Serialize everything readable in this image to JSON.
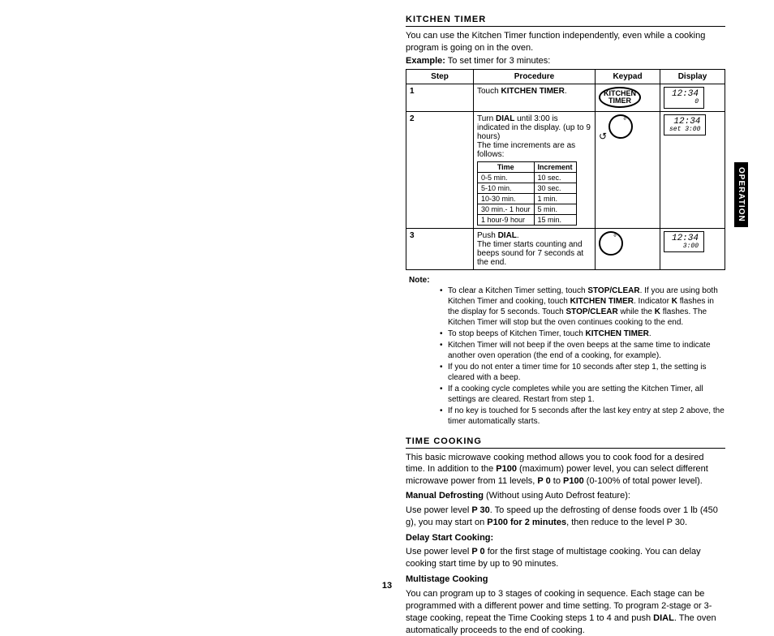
{
  "header": {
    "title": "KITCHEN TIMER"
  },
  "intro": {
    "p1": "You can use the Kitchen Timer function independently, even while a cooking program is going on in the oven.",
    "example_lbl": "Example:",
    "example_txt": " To set timer for 3 minutes:"
  },
  "table": {
    "cols": {
      "step": "Step",
      "procedure": "Procedure",
      "keypad": "Keypad",
      "display": "Display"
    },
    "rows": [
      {
        "num": "1",
        "proc_pre": "Touch ",
        "proc_bold": "KITCHEN TIMER",
        "proc_post": ".",
        "keypad_oval_l1": "KITCHEN",
        "keypad_oval_l2": "TIMER",
        "lcd_main": "12:34",
        "lcd_sub": "0"
      },
      {
        "num": "2",
        "proc_pre": "Turn ",
        "proc_bold": "DIAL",
        "proc_post": " until 3:00 is indicated in the display. (up to 9 hours)",
        "proc_p2": "The time increments are as follows:",
        "inner": {
          "h1": "Time",
          "h2": "Increment",
          "r": [
            [
              "0-5 min.",
              "10 sec."
            ],
            [
              "5-10 min.",
              "30 sec."
            ],
            [
              "10-30 min.",
              "1 min."
            ],
            [
              "30 min.- 1 hour",
              "5 min."
            ],
            [
              "1 hour-9 hour",
              "15 min."
            ]
          ]
        },
        "arrow": "↺",
        "lcd_main": "12:34",
        "lcd_sub": "set  3:00"
      },
      {
        "num": "3",
        "proc_pre": "Push ",
        "proc_bold": "DIAL",
        "proc_post": ".",
        "proc_p2": "The timer starts counting and beeps sound for 7 seconds at the end.",
        "lcd_main": "12:34",
        "lcd_sub": "3:00"
      }
    ]
  },
  "note": {
    "lbl": "Note:",
    "items": [
      {
        "pre": "To clear a Kitchen Timer setting, touch ",
        "b1": "STOP/CLEAR",
        "mid": ". If you are using both Kitchen Timer and cooking, touch ",
        "b2": "KITCHEN TIMER",
        "mid2": ". Indicator ",
        "b3": "K",
        "mid3": " flashes in the display for 5 seconds. Touch ",
        "b4": "STOP/CLEAR",
        "mid4": " while the ",
        "b5": "K",
        "post": " flashes. The Kitchen Timer will stop but the oven continues cooking to the end."
      },
      {
        "pre": "To stop beeps of Kitchen Timer, touch ",
        "b1": "KITCHEN TIMER",
        "post": "."
      },
      {
        "pre": "Kitchen Timer will not beep if the oven beeps at the same time to indicate another oven operation (the end of a cooking, for example).",
        "b1": "",
        "post": ""
      },
      {
        "pre": "If you do not enter a timer time for 10 seconds after step 1, the setting is cleared with a beep.",
        "b1": "",
        "post": ""
      },
      {
        "pre": "If a cooking cycle completes while you are setting the Kitchen Timer, all settings are cleared. Restart from step 1.",
        "b1": "",
        "post": ""
      },
      {
        "pre": "If no key is touched for 5 seconds after the last key entry at step 2 above, the timer automatically starts.",
        "b1": "",
        "post": ""
      }
    ]
  },
  "time_cooking": {
    "title": "TIME COOKING",
    "p1_a": "This basic microwave cooking method allows you to cook food for a desired time. In addition to the ",
    "p1_b": "P100",
    "p1_c": " (maximum) power level, you can select different microwave power from 11 levels, ",
    "p1_d": "P 0",
    "p1_e": " to ",
    "p1_f": "P100",
    "p1_g": " (0-100% of total power level).",
    "md_head": "Manual Defrosting",
    "md_head_post": " (Without using Auto Defrost feature):",
    "md_a": "Use power level ",
    "md_b": "P 30",
    "md_c": ". To speed up the defrosting of dense foods over 1 lb (450 g), you may start on ",
    "md_d": "P100 for 2 minutes",
    "md_e": ", then reduce to the level P 30.",
    "ds_head": "Delay Start Cooking:",
    "ds_a": "Use power level ",
    "ds_b": "P 0",
    "ds_c": " for the first stage of multistage cooking. You can delay cooking start time by up to 90 minutes.",
    "ms_head": "Multistage Cooking",
    "ms_a": "You can program up to 3 stages of cooking in sequence. Each stage can be programmed with a different power and time setting. To program 2-stage or 3-stage cooking, repeat the Time Cooking steps 1 to 4 and push ",
    "ms_b": "DIAL",
    "ms_c": ". The oven automatically proceeds to the end of cooking."
  },
  "pagenum": "13",
  "sidetab": "OPERATION"
}
